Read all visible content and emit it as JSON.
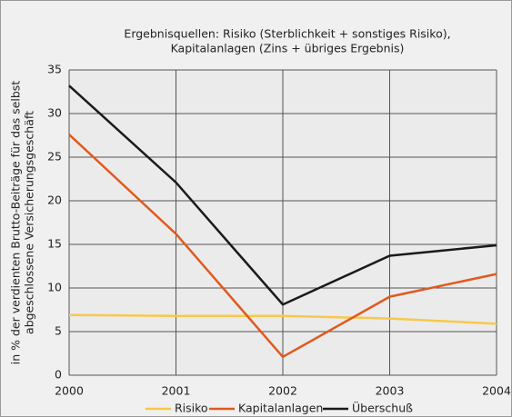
{
  "chart_data": {
    "type": "line",
    "title": [
      "Ergebnisquellen: Risiko (Sterblichkeit + sonstiges Risiko),",
      "Kapitalanlagen (Zins + übriges Ergebnis)"
    ],
    "y_label": [
      "in % der verdienten Brutto-Beiträge für das selbst",
      "abgeschlossene Versicherungsgeschäft"
    ],
    "categories": [
      "2000",
      "2001",
      "2002",
      "2003",
      "2004"
    ],
    "series": [
      {
        "name": "Risiko",
        "color": "#f7c84a",
        "values": [
          6.9,
          6.8,
          6.8,
          6.5,
          5.9
        ]
      },
      {
        "name": "Kapitalanlagen",
        "color": "#e05a1e",
        "values": [
          27.6,
          16.2,
          2.1,
          9.0,
          11.6
        ]
      },
      {
        "name": "Überschuß",
        "color": "#1a1a1a",
        "values": [
          33.2,
          22.1,
          8.1,
          13.7,
          14.9
        ]
      }
    ],
    "ylim": [
      0,
      35
    ],
    "yticks": [
      0,
      5,
      10,
      15,
      20,
      25,
      30,
      35
    ],
    "grid": true,
    "legend": "bottom"
  }
}
